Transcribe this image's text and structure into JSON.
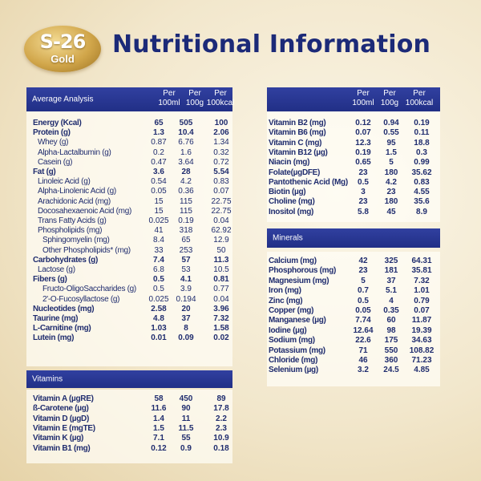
{
  "logo": {
    "brand": "S-26",
    "sub": "Gold"
  },
  "page_title": "Nutritional Information",
  "average_analysis": {
    "title": "Average Analysis",
    "col1": "Per 100ml",
    "col2": "Per 100g",
    "col3": "Per 100kcal",
    "rows": [
      {
        "label": "Energy (Kcal)",
        "bold": true,
        "indent": 0,
        "v1": "65",
        "v2": "505",
        "v3": "100"
      },
      {
        "label": "Protein (g)",
        "bold": true,
        "indent": 0,
        "v1": "1.3",
        "v2": "10.4",
        "v3": "2.06"
      },
      {
        "label": "Whey (g)",
        "bold": false,
        "indent": 1,
        "v1": "0.87",
        "v2": "6.76",
        "v3": "1.34"
      },
      {
        "label": "Alpha-Lactalbumin (g)",
        "bold": false,
        "indent": 1,
        "v1": "0.2",
        "v2": "1.6",
        "v3": "0.32"
      },
      {
        "label": "Casein (g)",
        "bold": false,
        "indent": 1,
        "v1": "0.47",
        "v2": "3.64",
        "v3": "0.72"
      },
      {
        "label": "Fat (g)",
        "bold": true,
        "indent": 0,
        "v1": "3.6",
        "v2": "28",
        "v3": "5.54"
      },
      {
        "label": "Linoleic Acid (g)",
        "bold": false,
        "indent": 1,
        "v1": "0.54",
        "v2": "4.2",
        "v3": "0.83"
      },
      {
        "label": "Alpha-Linolenic Acid (g)",
        "bold": false,
        "indent": 1,
        "v1": "0.05",
        "v2": "0.36",
        "v3": "0.07"
      },
      {
        "label": "Arachidonic Acid (mg)",
        "bold": false,
        "indent": 1,
        "v1": "15",
        "v2": "115",
        "v3": "22.75"
      },
      {
        "label": "Docosahexaenoic Acid (mg)",
        "bold": false,
        "indent": 1,
        "v1": "15",
        "v2": "115",
        "v3": "22.75"
      },
      {
        "label": "Trans Fatty Acids (g)",
        "bold": false,
        "indent": 1,
        "v1": "0.025",
        "v2": "0.19",
        "v3": "0.04"
      },
      {
        "label": "Phospholipids (mg)",
        "bold": false,
        "indent": 1,
        "v1": "41",
        "v2": "318",
        "v3": "62.92"
      },
      {
        "label": "Sphingomyelin (mg)",
        "bold": false,
        "indent": 2,
        "v1": "8.4",
        "v2": "65",
        "v3": "12.9"
      },
      {
        "label": "Other Phospholipids* (mg)",
        "bold": false,
        "indent": 2,
        "v1": "33",
        "v2": "253",
        "v3": "50"
      },
      {
        "label": "Carbohydrates (g)",
        "bold": true,
        "indent": 0,
        "v1": "7.4",
        "v2": "57",
        "v3": "11.3"
      },
      {
        "label": "Lactose (g)",
        "bold": false,
        "indent": 1,
        "v1": "6.8",
        "v2": "53",
        "v3": "10.5"
      },
      {
        "label": "Fibers (g)",
        "bold": true,
        "indent": 0,
        "v1": "0.5",
        "v2": "4.1",
        "v3": "0.81"
      },
      {
        "label": "Fructo-OligoSaccharides (g)",
        "bold": false,
        "indent": 2,
        "v1": "0.5",
        "v2": "3.9",
        "v3": "0.77"
      },
      {
        "label": "2'-O-Fucosyllactose (g)",
        "bold": false,
        "indent": 2,
        "v1": "0.025",
        "v2": "0.194",
        "v3": "0.04"
      },
      {
        "label": "Nucleotides (mg)",
        "bold": true,
        "indent": 0,
        "v1": "2.58",
        "v2": "20",
        "v3": "3.96"
      },
      {
        "label": "Taurine (mg)",
        "bold": true,
        "indent": 0,
        "v1": "4.8",
        "v2": "37",
        "v3": "7.32"
      },
      {
        "label": "L-Carnitine (mg)",
        "bold": true,
        "indent": 0,
        "v1": "1.03",
        "v2": "8",
        "v3": "1.58"
      },
      {
        "label": "Lutein (mg)",
        "bold": true,
        "indent": 0,
        "v1": "0.01",
        "v2": "0.09",
        "v3": "0.02"
      }
    ]
  },
  "vitamins": {
    "title": "Vitamins",
    "rows": [
      {
        "label": "Vitamin A (µgRE)",
        "v1": "58",
        "v2": "450",
        "v3": "89"
      },
      {
        "label": "ß-Carotene (µg)",
        "v1": "11.6",
        "v2": "90",
        "v3": "17.8"
      },
      {
        "label": "Vitamin D (µgD)",
        "v1": "1.4",
        "v2": "11",
        "v3": "2.2"
      },
      {
        "label": "Vitamin E (mgTE)",
        "v1": "1.5",
        "v2": "11.5",
        "v3": "2.3"
      },
      {
        "label": "Vitamin K (µg)",
        "v1": "7.1",
        "v2": "55",
        "v3": "10.9"
      },
      {
        "label": "Vitamin B1 (mg)",
        "v1": "0.12",
        "v2": "0.9",
        "v3": "0.18"
      }
    ]
  },
  "right_top": {
    "col1": "Per 100ml",
    "col2": "Per 100g",
    "col3": "Per 100kcal",
    "rows": [
      {
        "label": "Vitamin B2 (mg)",
        "v1": "0.12",
        "v2": "0.94",
        "v3": "0.19"
      },
      {
        "label": "Vitamin B6 (mg)",
        "v1": "0.07",
        "v2": "0.55",
        "v3": "0.11"
      },
      {
        "label": "Vitamin C (mg)",
        "v1": "12.3",
        "v2": "95",
        "v3": "18.8"
      },
      {
        "label": "Vitamin B12 (µg)",
        "v1": "0.19",
        "v2": "1.5",
        "v3": "0.3"
      },
      {
        "label": "Niacin (mg)",
        "v1": "0.65",
        "v2": "5",
        "v3": "0.99"
      },
      {
        "label": "Folate(µgDFE)",
        "v1": "23",
        "v2": "180",
        "v3": "35.62"
      },
      {
        "label": "Pantothenic Acid (Mg)",
        "v1": "0.5",
        "v2": "4.2",
        "v3": "0.83"
      },
      {
        "label": "Biotin (µg)",
        "v1": "3",
        "v2": "23",
        "v3": "4.55"
      },
      {
        "label": "Choline (mg)",
        "v1": "23",
        "v2": "180",
        "v3": "35.6"
      },
      {
        "label": "Inositol (mg)",
        "v1": "5.8",
        "v2": "45",
        "v3": "8.9"
      }
    ]
  },
  "minerals": {
    "title": "Minerals",
    "rows": [
      {
        "label": "Calcium (mg)",
        "v1": "42",
        "v2": "325",
        "v3": "64.31"
      },
      {
        "label": "Phosphorous (mg)",
        "v1": "23",
        "v2": "181",
        "v3": "35.81"
      },
      {
        "label": "Magnesium (mg)",
        "v1": "5",
        "v2": "37",
        "v3": "7.32"
      },
      {
        "label": "Iron (mg)",
        "v1": "0.7",
        "v2": "5.1",
        "v3": "1.01"
      },
      {
        "label": "Zinc (mg)",
        "v1": "0.5",
        "v2": "4",
        "v3": "0.79"
      },
      {
        "label": "Copper (mg)",
        "v1": "0.05",
        "v2": "0.35",
        "v3": "0.07"
      },
      {
        "label": "Manganese (µg)",
        "v1": "7.74",
        "v2": "60",
        "v3": "11.87"
      },
      {
        "label": "Iodine (µg)",
        "v1": "12.64",
        "v2": "98",
        "v3": "19.39"
      },
      {
        "label": "Sodium (mg)",
        "v1": "22.6",
        "v2": "175",
        "v3": "34.63"
      },
      {
        "label": "Potassium (mg)",
        "v1": "71",
        "v2": "550",
        "v3": "108.82"
      },
      {
        "label": "Chloride (mg)",
        "v1": "46",
        "v2": "360",
        "v3": "71.23"
      },
      {
        "label": "Selenium (µg)",
        "v1": "3.2",
        "v2": "24.5",
        "v3": "4.85"
      }
    ]
  }
}
